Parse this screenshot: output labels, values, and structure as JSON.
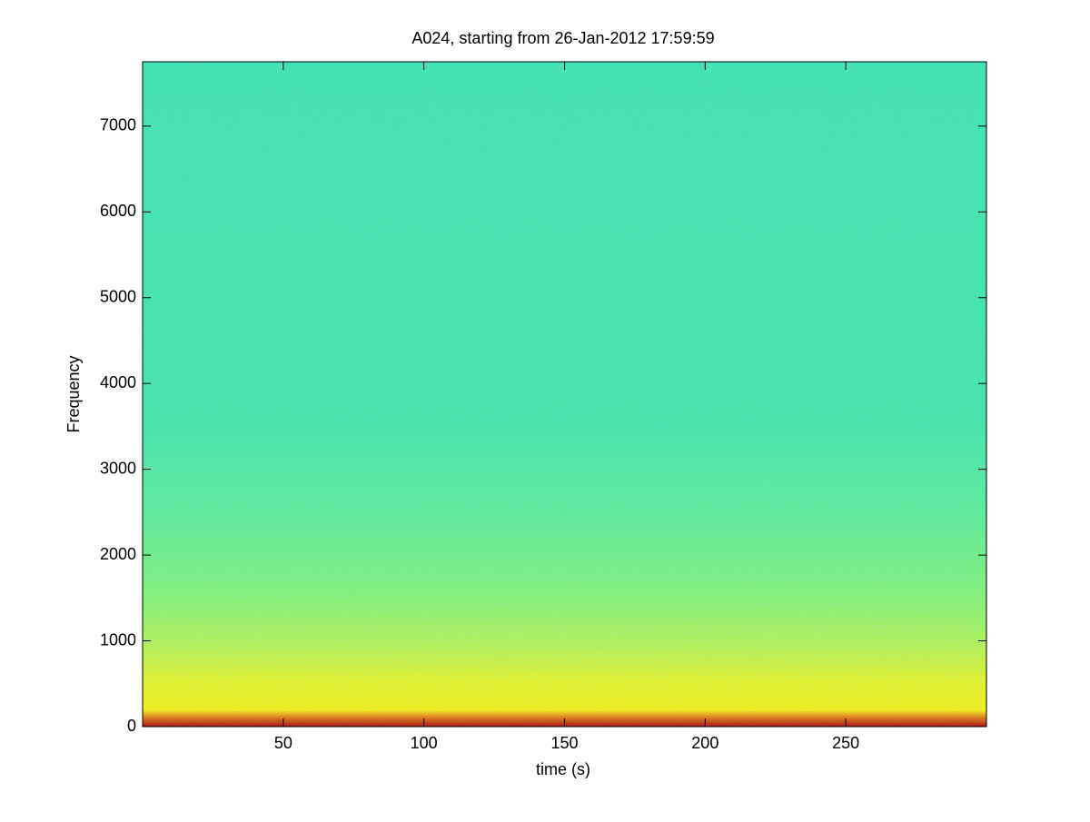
{
  "chart_data": {
    "type": "spectrogram",
    "title": "A024, starting from 26-Jan-2012 17:59:59",
    "x_label": "time (s)",
    "y_label": "Frequency",
    "xlim": [
      0,
      300
    ],
    "xticks": [
      50,
      100,
      150,
      200,
      250
    ],
    "ylim": [
      0,
      7750
    ],
    "yticks": [
      0,
      1000,
      2000,
      3000,
      4000,
      5000,
      6000,
      7000
    ]
  }
}
